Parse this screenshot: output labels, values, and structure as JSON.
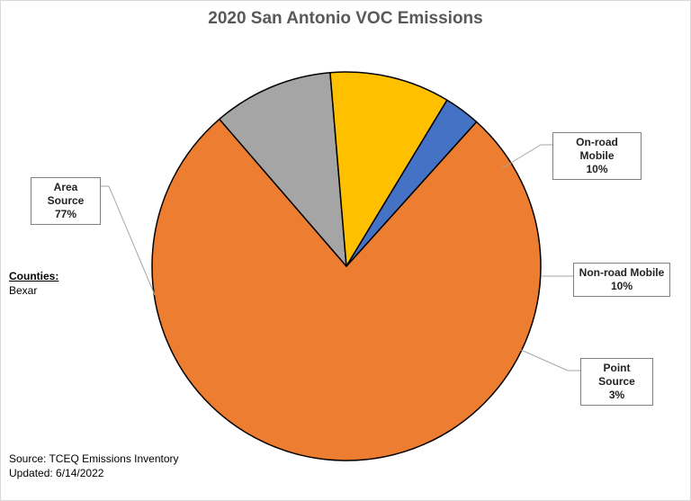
{
  "chart_data": {
    "type": "pie",
    "title": "2020 San Antonio VOC Emissions",
    "slices": [
      {
        "label": "Area Source",
        "value": 77,
        "display": "77%",
        "color": "#ED7D31"
      },
      {
        "label": "On-road Mobile",
        "value": 10,
        "display": "10%",
        "color": "#A5A5A5"
      },
      {
        "label": "Non-road Mobile",
        "value": 10,
        "display": "10%",
        "color": "#FFC000"
      },
      {
        "label": "Point Source",
        "value": 3,
        "display": "3%",
        "color": "#4472C4"
      }
    ]
  },
  "notes": {
    "counties_heading": "Counties:",
    "counties_value": "Bexar",
    "source": "Source: TCEQ Emissions Inventory",
    "updated": "Updated: 6/14/2022"
  }
}
